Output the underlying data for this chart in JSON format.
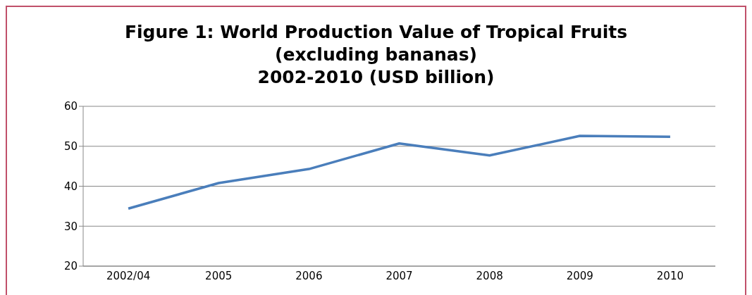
{
  "chart_data": {
    "type": "line",
    "title": "Figure 1: World Production Value of Tropical Fruits\n(excluding bananas)\n2002-2010 (USD billion)",
    "categories": [
      "2002/04",
      "2005",
      "2006",
      "2007",
      "2008",
      "2009",
      "2010"
    ],
    "series": [
      {
        "color": "#4a7ebb",
        "values": [
          34.4,
          40.8,
          44.3,
          50.7,
          47.7,
          52.6,
          52.4
        ]
      }
    ],
    "ylim": [
      20,
      60
    ],
    "yticks": [
      20,
      30,
      40,
      50,
      60
    ],
    "grid": "y",
    "legend": false,
    "marker": "none",
    "line_style": "solid"
  }
}
